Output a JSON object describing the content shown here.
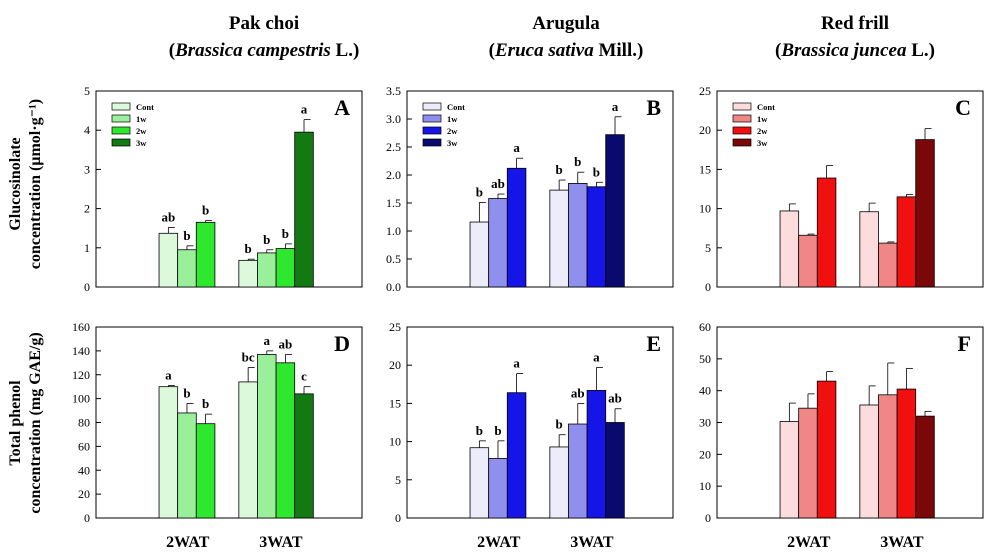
{
  "columns": [
    {
      "common": "Pak choi",
      "sci_open": "(",
      "sci_genus": "Brassica campestris",
      "sci_auth": " L.)"
    },
    {
      "common": "Arugula",
      "sci_open": "(",
      "sci_genus": "Eruca sativa",
      "sci_auth": " Mill.)"
    },
    {
      "common": "Red frill",
      "sci_open": "(",
      "sci_genus": "Brassica juncea",
      "sci_auth": " L.)"
    }
  ],
  "row_labels": {
    "top": [
      "Glucosinolate",
      "concentration (μmol·g⁻¹)"
    ],
    "bottom": [
      "Total phenol",
      "concentration (mg GAE/g)"
    ]
  },
  "x_category_labels": [
    "2WAT",
    "3WAT"
  ],
  "chart_data": [
    {
      "panel": "A",
      "type": "bar",
      "ylim": [
        0,
        5
      ],
      "ticks": [
        0,
        1,
        2,
        3,
        4,
        5
      ],
      "tick_decimals": 0,
      "colors": [
        "#dcf9dc",
        "#9af09a",
        "#2ee82e",
        "#137a13"
      ],
      "legend": [
        "Cont",
        "1w",
        "2w",
        "3w"
      ],
      "categories": [
        "2WAT",
        "3WAT"
      ],
      "series": [
        {
          "values": [
            1.37,
            0.68
          ],
          "errors": [
            0.15,
            0.03
          ],
          "letters": [
            "ab",
            "b"
          ]
        },
        {
          "values": [
            0.95,
            0.87
          ],
          "errors": [
            0.1,
            0.08
          ],
          "letters": [
            "b",
            "b"
          ]
        },
        {
          "values": [
            1.65,
            0.98
          ],
          "errors": [
            0.05,
            0.12
          ],
          "letters": [
            "b",
            "b"
          ]
        },
        {
          "values": [
            null,
            3.95
          ],
          "errors": [
            null,
            0.32
          ],
          "letters": [
            "",
            "a"
          ]
        }
      ]
    },
    {
      "panel": "B",
      "type": "bar",
      "ylim": [
        0,
        3.5
      ],
      "ticks": [
        0,
        0.5,
        1,
        1.5,
        2,
        2.5,
        3,
        3.5
      ],
      "tick_decimals": 1,
      "colors": [
        "#ececfb",
        "#8f8fee",
        "#1515e8",
        "#0a0a6e"
      ],
      "legend": [
        "Cont",
        "1w",
        "2w",
        "3w"
      ],
      "categories": [
        "2WAT",
        "3WAT"
      ],
      "series": [
        {
          "values": [
            1.16,
            1.73
          ],
          "errors": [
            0.35,
            0.18
          ],
          "letters": [
            "b",
            "b"
          ]
        },
        {
          "values": [
            1.58,
            1.85
          ],
          "errors": [
            0.08,
            0.2
          ],
          "letters": [
            "ab",
            "b"
          ]
        },
        {
          "values": [
            2.12,
            1.79
          ],
          "errors": [
            0.18,
            0.08
          ],
          "letters": [
            "a",
            "b"
          ]
        },
        {
          "values": [
            null,
            2.72
          ],
          "errors": [
            null,
            0.32
          ],
          "letters": [
            "",
            "a"
          ]
        }
      ]
    },
    {
      "panel": "C",
      "type": "bar",
      "ylim": [
        0,
        25
      ],
      "ticks": [
        0,
        5,
        10,
        15,
        20,
        25
      ],
      "tick_decimals": 0,
      "colors": [
        "#fcdcdc",
        "#f08686",
        "#f01010",
        "#7a0808"
      ],
      "legend": [
        "Cont",
        "1w",
        "2w",
        "3w"
      ],
      "categories": [
        "2WAT",
        "3WAT"
      ],
      "series": [
        {
          "values": [
            9.7,
            9.6
          ],
          "errors": [
            0.9,
            1.1
          ],
          "letters": [
            "",
            ""
          ]
        },
        {
          "values": [
            6.6,
            5.6
          ],
          "errors": [
            0.15,
            0.15
          ],
          "letters": [
            "",
            ""
          ]
        },
        {
          "values": [
            13.9,
            11.5
          ],
          "errors": [
            1.6,
            0.3
          ],
          "letters": [
            "",
            ""
          ]
        },
        {
          "values": [
            null,
            18.8
          ],
          "errors": [
            null,
            1.4
          ],
          "letters": [
            "",
            ""
          ]
        }
      ]
    },
    {
      "panel": "D",
      "type": "bar",
      "ylim": [
        0,
        160
      ],
      "ticks": [
        0,
        20,
        40,
        60,
        80,
        100,
        120,
        140,
        160
      ],
      "tick_decimals": 0,
      "colors": [
        "#dcf9dc",
        "#9af09a",
        "#2ee82e",
        "#137a13"
      ],
      "legend": [],
      "categories": [
        "2WAT",
        "3WAT"
      ],
      "series": [
        {
          "values": [
            110,
            114
          ],
          "errors": [
            1,
            12
          ],
          "letters": [
            "a",
            "bc"
          ]
        },
        {
          "values": [
            88,
            137
          ],
          "errors": [
            8,
            3
          ],
          "letters": [
            "b",
            "a"
          ]
        },
        {
          "values": [
            79,
            130
          ],
          "errors": [
            8,
            7
          ],
          "letters": [
            "b",
            "ab"
          ]
        },
        {
          "values": [
            null,
            104
          ],
          "errors": [
            null,
            6
          ],
          "letters": [
            "",
            "c"
          ]
        }
      ]
    },
    {
      "panel": "E",
      "type": "bar",
      "ylim": [
        0,
        25
      ],
      "ticks": [
        0,
        5,
        10,
        15,
        20,
        25
      ],
      "tick_decimals": 0,
      "colors": [
        "#ececfb",
        "#8f8fee",
        "#1515e8",
        "#0a0a6e"
      ],
      "legend": [],
      "categories": [
        "2WAT",
        "3WAT"
      ],
      "series": [
        {
          "values": [
            9.2,
            9.3
          ],
          "errors": [
            0.9,
            1.6
          ],
          "letters": [
            "b",
            "b"
          ]
        },
        {
          "values": [
            7.8,
            12.3
          ],
          "errors": [
            2.3,
            2.7
          ],
          "letters": [
            "b",
            "ab"
          ]
        },
        {
          "values": [
            16.4,
            16.7
          ],
          "errors": [
            2.5,
            3.0
          ],
          "letters": [
            "a",
            "a"
          ]
        },
        {
          "values": [
            null,
            12.5
          ],
          "errors": [
            null,
            1.8
          ],
          "letters": [
            "",
            "ab"
          ]
        }
      ]
    },
    {
      "panel": "F",
      "type": "bar",
      "ylim": [
        0,
        60
      ],
      "ticks": [
        0,
        10,
        20,
        30,
        40,
        50,
        60
      ],
      "tick_decimals": 0,
      "colors": [
        "#fcdcdc",
        "#f08686",
        "#f01010",
        "#7a0808"
      ],
      "legend": [],
      "categories": [
        "2WAT",
        "3WAT"
      ],
      "series": [
        {
          "values": [
            30.3,
            35.5
          ],
          "errors": [
            5.8,
            6.0
          ],
          "letters": [
            "",
            ""
          ]
        },
        {
          "values": [
            34.5,
            38.7
          ],
          "errors": [
            4.5,
            10.0
          ],
          "letters": [
            "",
            ""
          ]
        },
        {
          "values": [
            43.0,
            40.5
          ],
          "errors": [
            3.0,
            6.5
          ],
          "letters": [
            "",
            ""
          ]
        },
        {
          "values": [
            null,
            32.0
          ],
          "errors": [
            null,
            1.5
          ],
          "letters": [
            "",
            ""
          ]
        }
      ]
    }
  ]
}
